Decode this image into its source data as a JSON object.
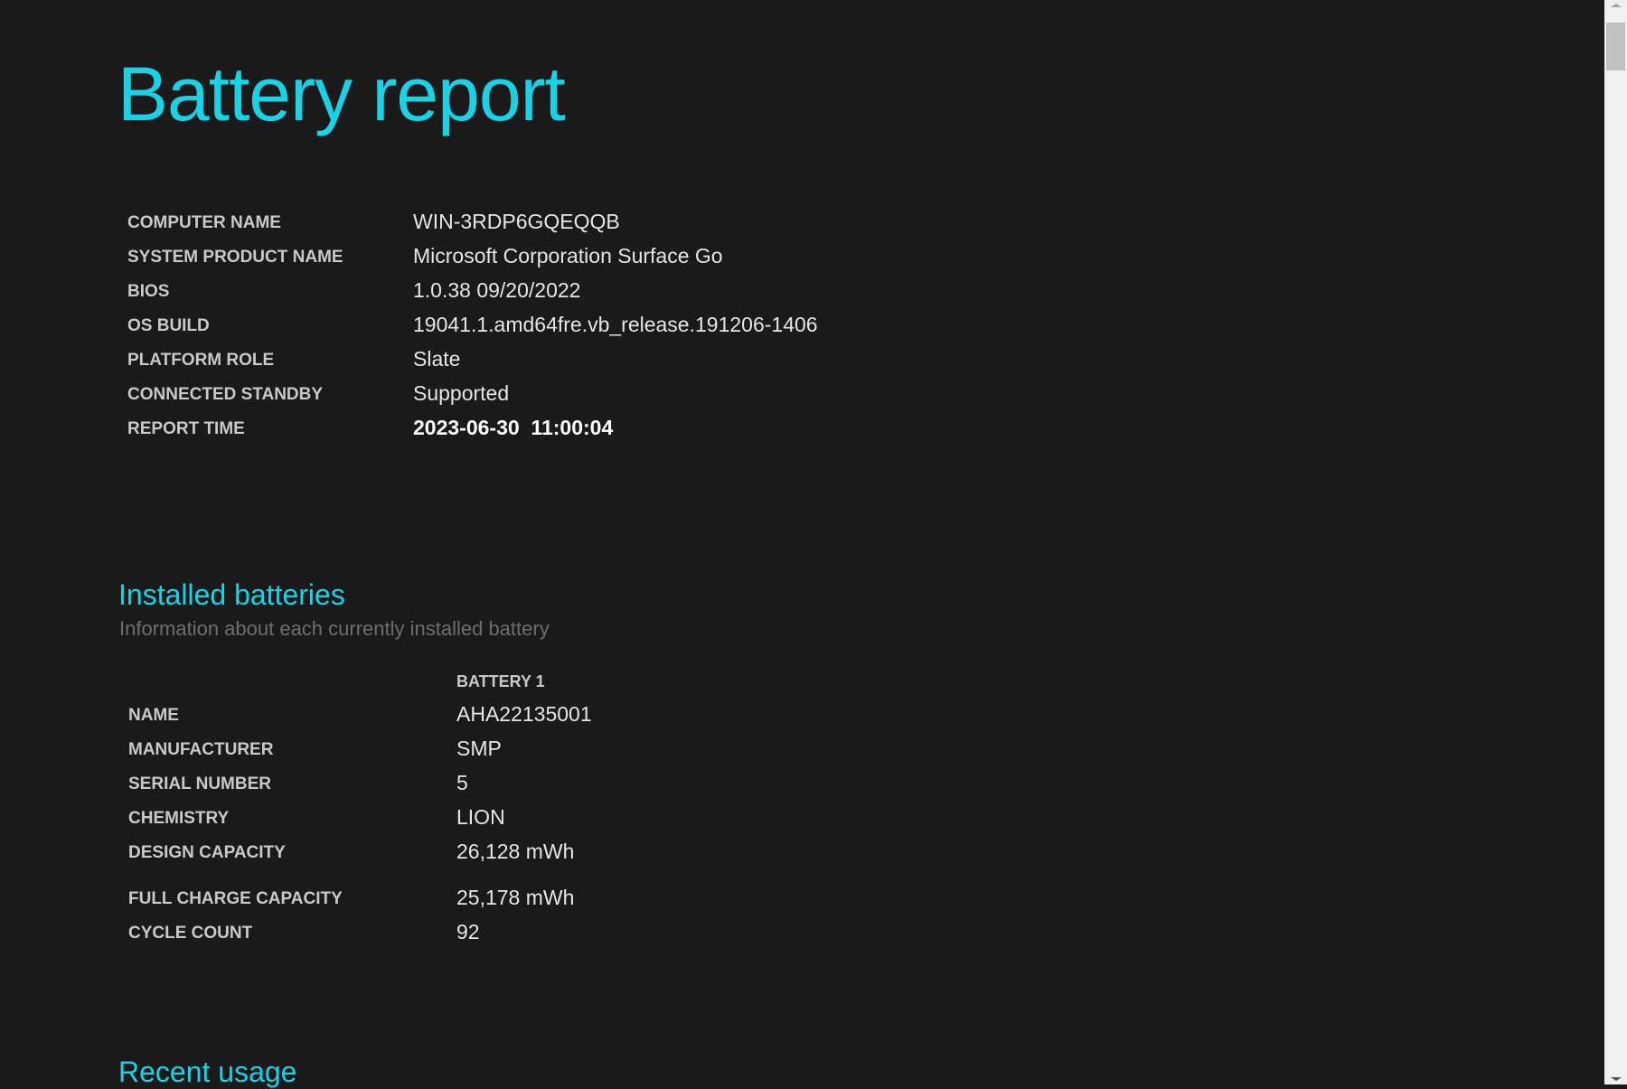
{
  "title": "Battery report",
  "system_info": [
    {
      "label": "COMPUTER NAME",
      "value": "WIN-3RDP6GQEQQB"
    },
    {
      "label": "SYSTEM PRODUCT NAME",
      "value": "Microsoft Corporation Surface Go"
    },
    {
      "label": "BIOS",
      "value": "1.0.38 09/20/2022"
    },
    {
      "label": "OS BUILD",
      "value": "19041.1.amd64fre.vb_release.191206-1406"
    },
    {
      "label": "PLATFORM ROLE",
      "value": "Slate"
    },
    {
      "label": "CONNECTED STANDBY",
      "value": "Supported"
    },
    {
      "label": "REPORT TIME",
      "value": "2023-06-30  11:00:04"
    }
  ],
  "installed_batteries": {
    "heading": "Installed batteries",
    "subtitle": "Information about each currently installed battery",
    "column_header": "BATTERY 1",
    "rows": [
      {
        "label": "NAME",
        "value": "AHA22135001"
      },
      {
        "label": "MANUFACTURER",
        "value": "SMP"
      },
      {
        "label": "SERIAL NUMBER",
        "value": "5"
      },
      {
        "label": "CHEMISTRY",
        "value": "LION"
      },
      {
        "label": "DESIGN CAPACITY",
        "value": "26,128 mWh"
      },
      {
        "label": "FULL CHARGE CAPACITY",
        "value": "25,178 mWh"
      },
      {
        "label": "CYCLE COUNT",
        "value": "92"
      }
    ]
  },
  "recent_usage": {
    "heading": "Recent usage"
  },
  "colors": {
    "accent": "#19d2e6",
    "background": "#1a1a1a"
  }
}
